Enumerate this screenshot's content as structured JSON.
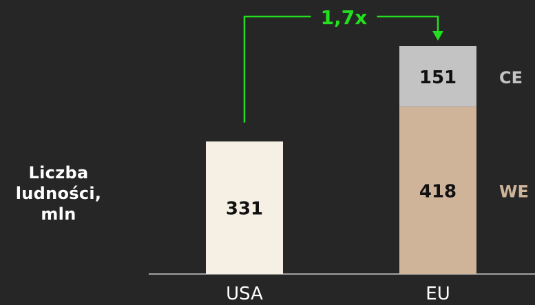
{
  "chart_data": {
    "type": "bar",
    "stacked": true,
    "categories": [
      "USA",
      "EU"
    ],
    "series": [
      {
        "name": "WE",
        "values": [
          331,
          418
        ],
        "colors": [
          "#f6efe3",
          "#d0b49a"
        ]
      },
      {
        "name": "CE",
        "values": [
          0,
          151
        ],
        "colors": [
          "#f6efe3",
          "#c3c3c3"
        ]
      }
    ],
    "ylabel_lines": [
      "Liczba",
      "ludności,",
      "mln"
    ],
    "annotation": {
      "text": "1,7x",
      "from": "USA",
      "to": "EU",
      "color": "#22e01f"
    },
    "legend": "right",
    "legend_colors": {
      "WE": "#d0b49a",
      "CE": "#c3c3c3"
    },
    "ylim": [
      0,
      569
    ],
    "grid": false,
    "background": "#262626"
  }
}
